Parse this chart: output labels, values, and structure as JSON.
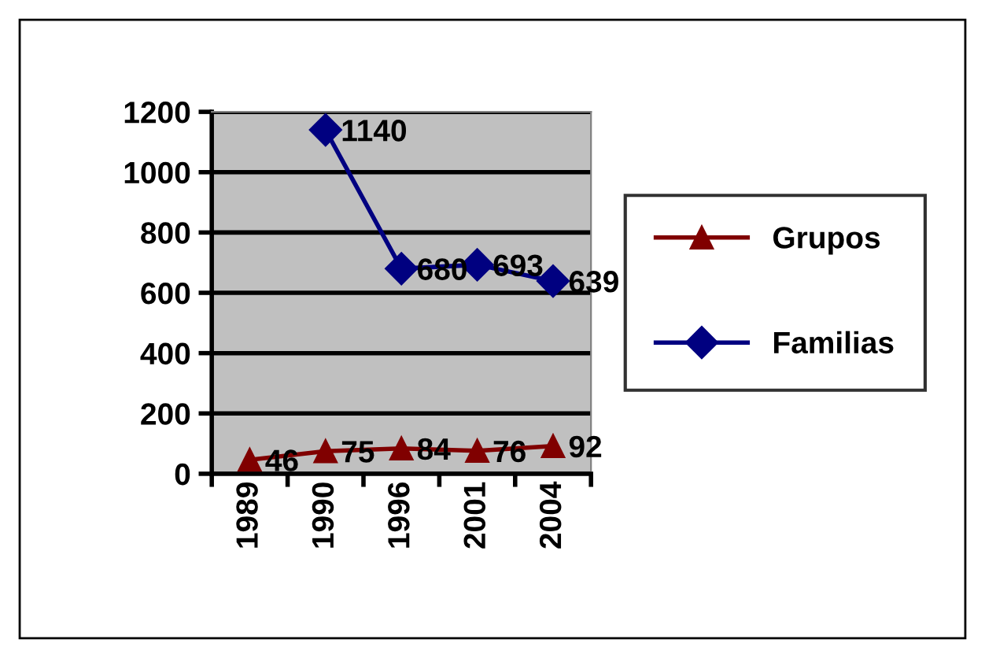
{
  "chart_data": {
    "type": "line",
    "categories": [
      "1989",
      "1990",
      "1996",
      "2001",
      "2004"
    ],
    "series": [
      {
        "name": "Grupos",
        "color": "#800000",
        "marker": "triangle",
        "values": [
          46,
          75,
          84,
          76,
          92
        ]
      },
      {
        "name": "Familias",
        "color": "#000080",
        "marker": "diamond",
        "values": [
          null,
          1140,
          680,
          693,
          639
        ]
      }
    ],
    "ylim": [
      0,
      1200
    ],
    "yticks": [
      0,
      200,
      400,
      600,
      800,
      1000,
      1200
    ],
    "grid": "y",
    "legend": "right",
    "data_labels": true
  }
}
